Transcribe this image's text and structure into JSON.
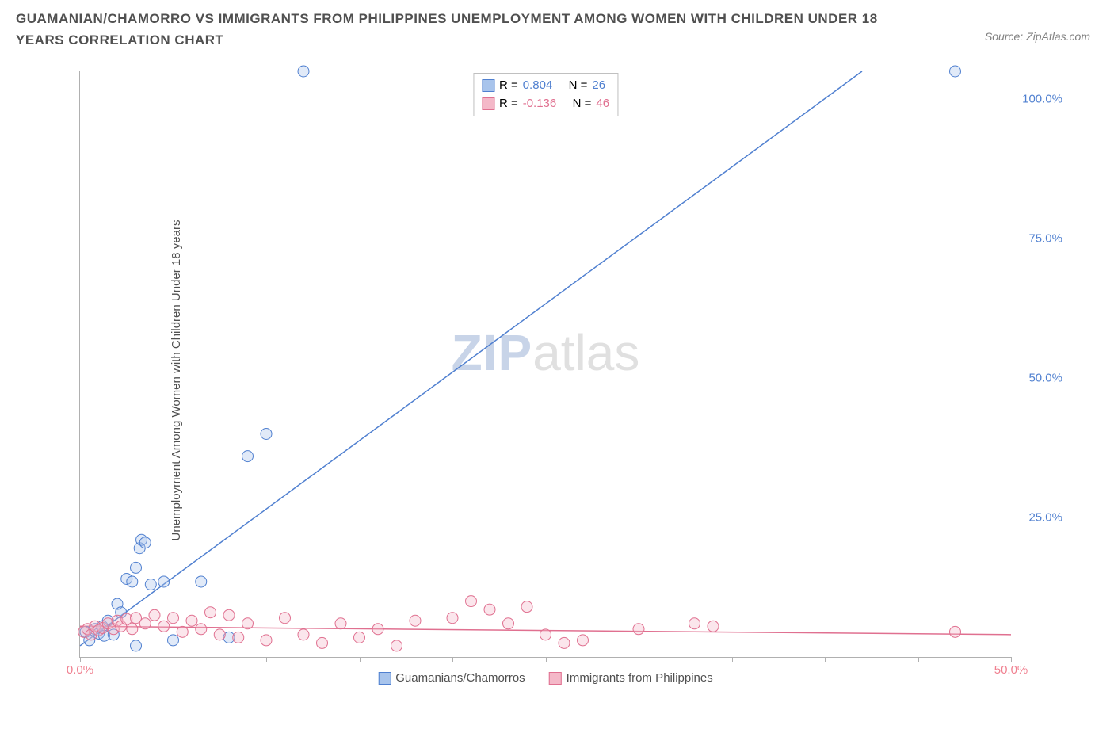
{
  "title": "GUAMANIAN/CHAMORRO VS IMMIGRANTS FROM PHILIPPINES UNEMPLOYMENT AMONG WOMEN WITH CHILDREN UNDER 18 YEARS CORRELATION CHART",
  "source": "Source: ZipAtlas.com",
  "y_axis_label": "Unemployment Among Women with Children Under 18 years",
  "watermark_a": "ZIP",
  "watermark_b": "atlas",
  "chart": {
    "type": "scatter",
    "xlim": [
      0,
      50
    ],
    "ylim": [
      0,
      105
    ],
    "x_ticks": [
      0,
      5,
      10,
      15,
      20,
      25,
      30,
      35,
      40,
      45,
      50
    ],
    "x_tick_labels": {
      "0": "0.0%",
      "50": "50.0%"
    },
    "y_ticks": [
      25,
      50,
      75,
      100
    ],
    "y_tick_labels": {
      "25": "25.0%",
      "50": "50.0%",
      "75": "75.0%",
      "100": "100.0%"
    },
    "x_tick_color": "#f08090",
    "y_tick_color": "#5080d0",
    "grid_color": "#f0f0f0",
    "axis_color": "#b0b0b0",
    "background_color": "#ffffff",
    "marker_radius": 7,
    "marker_stroke_width": 1,
    "marker_fill_opacity": 0.35,
    "trend_line_width": 1.5,
    "series": [
      {
        "name": "Guamanians/Chamorros",
        "color_fill": "#a8c4ec",
        "color_stroke": "#5080d0",
        "r_value": "0.804",
        "n_value": "26",
        "trend": {
          "x1": 0,
          "y1": 2,
          "x2": 42,
          "y2": 105
        },
        "points": [
          [
            0.3,
            4.5
          ],
          [
            0.5,
            3.0
          ],
          [
            0.8,
            5.0
          ],
          [
            1.0,
            4.2
          ],
          [
            1.2,
            5.5
          ],
          [
            1.3,
            3.8
          ],
          [
            1.5,
            6.5
          ],
          [
            1.8,
            4.0
          ],
          [
            2.0,
            9.5
          ],
          [
            2.2,
            8.0
          ],
          [
            2.5,
            14.0
          ],
          [
            2.8,
            13.5
          ],
          [
            3.0,
            16.0
          ],
          [
            3.2,
            19.5
          ],
          [
            3.3,
            21.0
          ],
          [
            3.5,
            20.5
          ],
          [
            3.8,
            13.0
          ],
          [
            4.5,
            13.5
          ],
          [
            5.0,
            3.0
          ],
          [
            6.5,
            13.5
          ],
          [
            8.0,
            3.5
          ],
          [
            9.0,
            36.0
          ],
          [
            10.0,
            40.0
          ],
          [
            12.0,
            105.0
          ],
          [
            47.0,
            105.0
          ],
          [
            3.0,
            2.0
          ]
        ]
      },
      {
        "name": "Immigrants from Philippines",
        "color_fill": "#f4b8c8",
        "color_stroke": "#e07090",
        "r_value": "-0.136",
        "n_value": "46",
        "trend": {
          "x1": 0,
          "y1": 5.5,
          "x2": 50,
          "y2": 4.0
        },
        "points": [
          [
            0.2,
            4.5
          ],
          [
            0.4,
            5.0
          ],
          [
            0.6,
            4.0
          ],
          [
            0.8,
            5.5
          ],
          [
            1.0,
            4.8
          ],
          [
            1.2,
            5.2
          ],
          [
            1.5,
            6.0
          ],
          [
            1.8,
            5.0
          ],
          [
            2.0,
            6.5
          ],
          [
            2.2,
            5.5
          ],
          [
            2.5,
            6.8
          ],
          [
            2.8,
            5.0
          ],
          [
            3.0,
            7.0
          ],
          [
            3.5,
            6.0
          ],
          [
            4.0,
            7.5
          ],
          [
            4.5,
            5.5
          ],
          [
            5.0,
            7.0
          ],
          [
            5.5,
            4.5
          ],
          [
            6.0,
            6.5
          ],
          [
            6.5,
            5.0
          ],
          [
            7.0,
            8.0
          ],
          [
            7.5,
            4.0
          ],
          [
            8.0,
            7.5
          ],
          [
            8.5,
            3.5
          ],
          [
            9.0,
            6.0
          ],
          [
            10.0,
            3.0
          ],
          [
            11.0,
            7.0
          ],
          [
            12.0,
            4.0
          ],
          [
            13.0,
            2.5
          ],
          [
            14.0,
            6.0
          ],
          [
            15.0,
            3.5
          ],
          [
            16.0,
            5.0
          ],
          [
            17.0,
            2.0
          ],
          [
            18.0,
            6.5
          ],
          [
            20.0,
            7.0
          ],
          [
            21.0,
            10.0
          ],
          [
            22.0,
            8.5
          ],
          [
            23.0,
            6.0
          ],
          [
            24.0,
            9.0
          ],
          [
            25.0,
            4.0
          ],
          [
            26.0,
            2.5
          ],
          [
            27.0,
            3.0
          ],
          [
            30.0,
            5.0
          ],
          [
            33.0,
            6.0
          ],
          [
            34.0,
            5.5
          ],
          [
            47.0,
            4.5
          ]
        ]
      }
    ]
  },
  "stats_labels": {
    "r": "R =",
    "n": "N ="
  },
  "legend_label_a": "Guamanians/Chamorros",
  "legend_label_b": "Immigrants from Philippines"
}
